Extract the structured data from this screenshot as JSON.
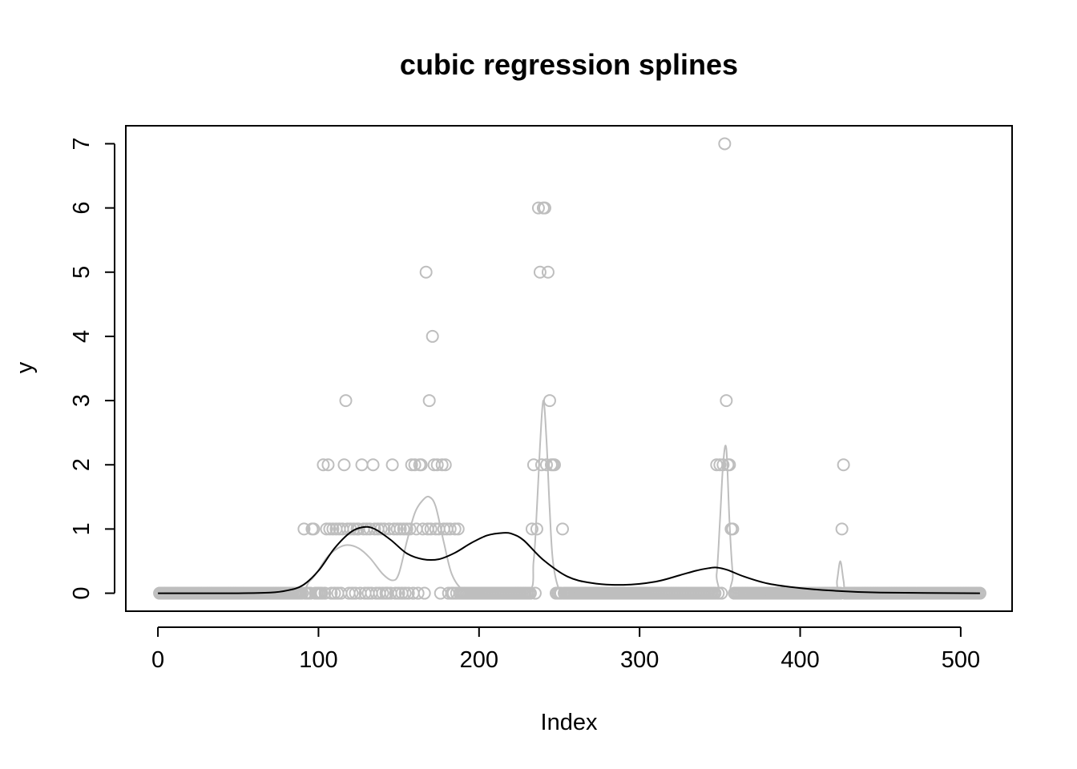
{
  "chart_data": {
    "type": "scatter",
    "title": "cubic regression splines",
    "xlabel": "Index",
    "ylabel": "y",
    "xlim": [
      -20,
      532
    ],
    "ylim": [
      -0.28,
      7.28
    ],
    "xticks": [
      0,
      100,
      200,
      300,
      400,
      500
    ],
    "yticks": [
      0,
      1,
      2,
      3,
      4,
      5,
      6,
      7
    ],
    "grid": false,
    "colors": {
      "points": "#bebebe",
      "fit_gray": "#bebebe",
      "fit_black": "#000000",
      "axes": "#000000"
    },
    "points": {
      "name": "observations",
      "x_range": [
        1,
        512
      ],
      "nonzero": [
        [
          91,
          1
        ],
        [
          96,
          1
        ],
        [
          97,
          1
        ],
        [
          103,
          2
        ],
        [
          105,
          1
        ],
        [
          106,
          2
        ],
        [
          107,
          1
        ],
        [
          109,
          1
        ],
        [
          111,
          1
        ],
        [
          113,
          1
        ],
        [
          115,
          1
        ],
        [
          116,
          2
        ],
        [
          117,
          3
        ],
        [
          118,
          1
        ],
        [
          120,
          1
        ],
        [
          122,
          1
        ],
        [
          124,
          1
        ],
        [
          125,
          1
        ],
        [
          127,
          2
        ],
        [
          128,
          1
        ],
        [
          130,
          1
        ],
        [
          132,
          1
        ],
        [
          134,
          2
        ],
        [
          135,
          1
        ],
        [
          137,
          1
        ],
        [
          139,
          1
        ],
        [
          141,
          1
        ],
        [
          144,
          1
        ],
        [
          146,
          2
        ],
        [
          147,
          1
        ],
        [
          149,
          1
        ],
        [
          151,
          1
        ],
        [
          153,
          1
        ],
        [
          155,
          1
        ],
        [
          157,
          1
        ],
        [
          158,
          2
        ],
        [
          160,
          2
        ],
        [
          161,
          1
        ],
        [
          163,
          2
        ],
        [
          164,
          2
        ],
        [
          165,
          1
        ],
        [
          167,
          5
        ],
        [
          168,
          1
        ],
        [
          169,
          3
        ],
        [
          170,
          1
        ],
        [
          171,
          4
        ],
        [
          172,
          2
        ],
        [
          173,
          1
        ],
        [
          174,
          2
        ],
        [
          175,
          1
        ],
        [
          177,
          2
        ],
        [
          178,
          1
        ],
        [
          179,
          2
        ],
        [
          180,
          1
        ],
        [
          182,
          1
        ],
        [
          185,
          1
        ],
        [
          187,
          1
        ],
        [
          233,
          1
        ],
        [
          234,
          2
        ],
        [
          236,
          1
        ],
        [
          237,
          6
        ],
        [
          238,
          5
        ],
        [
          239,
          2
        ],
        [
          240,
          6
        ],
        [
          241,
          6
        ],
        [
          242,
          2
        ],
        [
          243,
          5
        ],
        [
          244,
          3
        ],
        [
          245,
          2
        ],
        [
          246,
          2
        ],
        [
          247,
          2
        ],
        [
          252,
          1
        ],
        [
          348,
          2
        ],
        [
          350,
          2
        ],
        [
          352,
          2
        ],
        [
          353,
          7
        ],
        [
          354,
          3
        ],
        [
          355,
          2
        ],
        [
          356,
          2
        ],
        [
          357,
          1
        ],
        [
          358,
          1
        ],
        [
          426,
          1
        ],
        [
          427,
          2
        ]
      ]
    },
    "series": [
      {
        "name": "fit-gray",
        "x": [
          0,
          80,
          95,
          105,
          112,
          118,
          125,
          132,
          140,
          146,
          150,
          155,
          160,
          165,
          169,
          173,
          178,
          183,
          190,
          200,
          230,
          234,
          236,
          238,
          240,
          242,
          244,
          246,
          250,
          255,
          300,
          345,
          348,
          350,
          352,
          354,
          356,
          358,
          360,
          400,
          421,
          423,
          425,
          427,
          429,
          440,
          512
        ],
        "y": [
          0,
          0,
          0.2,
          0.55,
          0.7,
          0.75,
          0.7,
          0.55,
          0.3,
          0.2,
          0.3,
          0.8,
          1.25,
          1.45,
          1.5,
          1.35,
          0.8,
          0.3,
          0.05,
          0,
          0,
          0.5,
          1.3,
          2.3,
          3.0,
          2.4,
          1.3,
          0.5,
          0.05,
          0,
          0,
          0,
          0.3,
          1.1,
          2.0,
          2.25,
          1.1,
          0.3,
          0,
          0,
          0,
          0.2,
          0.5,
          0.2,
          0,
          0,
          0
        ]
      },
      {
        "name": "fit-black",
        "x": [
          0,
          50,
          70,
          80,
          90,
          100,
          110,
          120,
          128,
          135,
          145,
          155,
          165,
          175,
          185,
          195,
          205,
          215,
          221,
          228,
          240,
          255,
          270,
          290,
          310,
          325,
          335,
          343,
          348,
          355,
          365,
          380,
          400,
          420,
          450,
          512
        ],
        "y": [
          0,
          0,
          0.01,
          0.04,
          0.12,
          0.35,
          0.7,
          0.95,
          1.03,
          1.0,
          0.83,
          0.62,
          0.53,
          0.53,
          0.63,
          0.78,
          0.9,
          0.94,
          0.92,
          0.82,
          0.52,
          0.26,
          0.16,
          0.13,
          0.18,
          0.28,
          0.35,
          0.39,
          0.4,
          0.36,
          0.26,
          0.15,
          0.08,
          0.04,
          0.01,
          0
        ]
      }
    ]
  }
}
